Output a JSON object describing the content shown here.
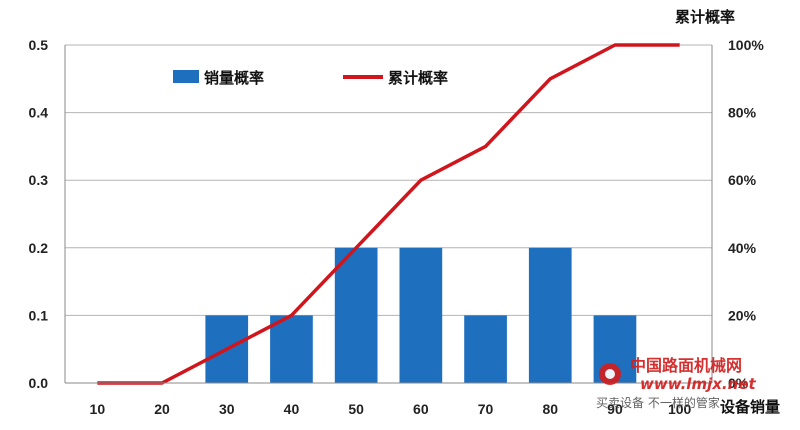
{
  "chart_data": {
    "type": "bar",
    "categories": [
      "10",
      "20",
      "30",
      "40",
      "50",
      "60",
      "70",
      "80",
      "90",
      "100"
    ],
    "series": [
      {
        "name": "销量概率",
        "type": "bar",
        "axis": "left",
        "color": "#1f6fbf",
        "values": [
          0,
          0,
          0.1,
          0.1,
          0.2,
          0.2,
          0.1,
          0.2,
          0.1,
          0
        ]
      },
      {
        "name": "累计概率",
        "type": "line",
        "axis": "right",
        "color": "#d0151c",
        "values": [
          0,
          0,
          0.1,
          0.2,
          0.4,
          0.6,
          0.7,
          0.9,
          1.0,
          1.0
        ]
      }
    ],
    "xlabel": "设备销量",
    "ylabel_right": "累计概率",
    "ylim": [
      0,
      0.5
    ],
    "y_ticks": [
      "0.0",
      "0.1",
      "0.2",
      "0.3",
      "0.4",
      "0.5"
    ],
    "ylim_right": [
      0,
      1
    ],
    "y2_ticks": [
      "0%",
      "20%",
      "40%",
      "60%",
      "80%",
      "100%"
    ],
    "grid": true,
    "legend_position": "top-left",
    "watermark": {
      "name": "中国路面机械网",
      "url": "www.lmjx.net",
      "text": "买卖设备 不一样的管家"
    }
  }
}
